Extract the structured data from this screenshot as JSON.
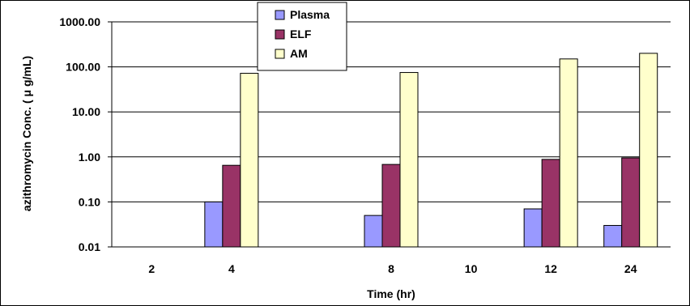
{
  "chart_data": {
    "type": "bar",
    "xlabel": "Time (hr)",
    "ylabel": "azithromycin Conc. ( μ g/mL)",
    "yscale": "log",
    "ylim": [
      0.01,
      1000
    ],
    "yticks": [
      "0.01",
      "0.10",
      "1.00",
      "10.00",
      "100.00",
      "1000.00"
    ],
    "grid": true,
    "legend_position": "top-center",
    "categories": [
      "2",
      "4",
      "",
      "8",
      "10",
      "12",
      "24"
    ],
    "series": [
      {
        "name": "Plasma",
        "color": "#9999ff",
        "values": [
          null,
          0.1,
          null,
          0.05,
          null,
          0.07,
          0.03
        ]
      },
      {
        "name": "ELF",
        "color": "#993366",
        "values": [
          null,
          0.65,
          null,
          0.68,
          null,
          0.88,
          0.95
        ]
      },
      {
        "name": "AM",
        "color": "#ffffcc",
        "values": [
          null,
          72,
          null,
          75,
          null,
          150,
          200
        ]
      }
    ]
  }
}
